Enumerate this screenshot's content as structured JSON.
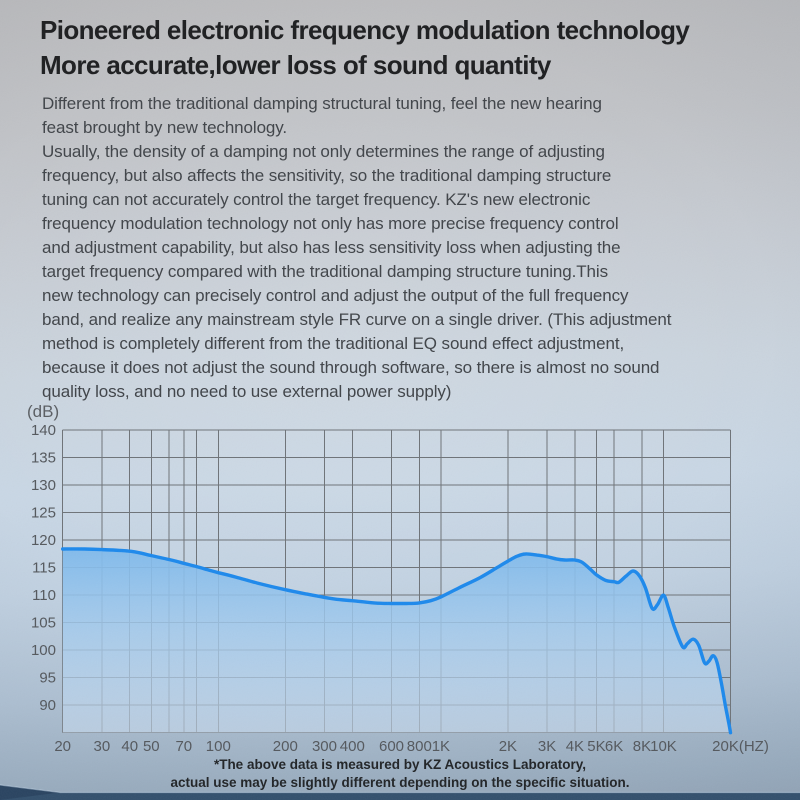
{
  "header": {
    "title_line1": "Pioneered electronic frequency modulation technology",
    "title_line2": "More accurate,lower loss of sound quantity"
  },
  "body_text": {
    "lines": [
      "Different from the traditional damping structural tuning, feel the new hearing",
      "feast brought by new technology.",
      "Usually, the density of a damping not only determines the range of adjusting",
      "frequency, but also affects the sensitivity, so the traditional damping structure",
      "tuning can not accurately control the target frequency. KZ's new electronic",
      "frequency modulation technology not only has more precise frequency control",
      "and adjustment capability, but also has less sensitivity loss when adjusting the",
      "target frequency compared with the traditional damping structure tuning.This",
      "new technology can precisely control and adjust the output of the full frequency",
      "band, and realize any mainstream style FR curve on a single driver. (This adjustment",
      "method is completely different from the traditional EQ sound effect adjustment,",
      "because it does not adjust the sound through software, so there is almost no sound",
      "quality loss, and no need to use external power supply)"
    ]
  },
  "chart_data": {
    "type": "area",
    "title": "",
    "xlabel": "(HZ)",
    "ylabel": "(dB)",
    "grid": "on",
    "legend": "off",
    "x_axis": {
      "scale": "log",
      "min_hz": 20,
      "max_hz": 20000,
      "gridlines_hz": [
        20,
        30,
        40,
        50,
        60,
        70,
        80,
        100,
        200,
        300,
        400,
        600,
        800,
        1000,
        2000,
        3000,
        4000,
        5000,
        6000,
        8000,
        10000,
        20000
      ],
      "labels": [
        {
          "hz": 20,
          "label": "20"
        },
        {
          "hz": 30,
          "label": "30"
        },
        {
          "hz": 40,
          "label": "40"
        },
        {
          "hz": 50,
          "label": "50"
        },
        {
          "hz": 70,
          "label": "70"
        },
        {
          "hz": 100,
          "label": "100"
        },
        {
          "hz": 200,
          "label": "200"
        },
        {
          "hz": 300,
          "label": "300"
        },
        {
          "hz": 400,
          "label": "400"
        },
        {
          "hz": 600,
          "label": "600"
        },
        {
          "hz": 800,
          "label": "800"
        },
        {
          "hz": 1000,
          "label": "1K"
        },
        {
          "hz": 2000,
          "label": "2K"
        },
        {
          "hz": 3000,
          "label": "3K"
        },
        {
          "hz": 4000,
          "label": "4K"
        },
        {
          "hz": 5000,
          "label": "5K"
        },
        {
          "hz": 6000,
          "label": "6K"
        },
        {
          "hz": 8000,
          "label": "8K"
        },
        {
          "hz": 10000,
          "label": "10K"
        },
        {
          "hz": 20000,
          "label": "20K(HZ)"
        }
      ]
    },
    "y_axis": {
      "unit_label": "(dB)",
      "min": 85,
      "max": 140,
      "tick_step": 5,
      "tick_labels": [
        "140",
        "135",
        "130",
        "125",
        "120",
        "115",
        "110",
        "105",
        "100",
        "95",
        "90"
      ]
    },
    "series": [
      {
        "name": "frequency-response",
        "color": "#1d89ec",
        "points_hz_db": [
          [
            20,
            118.4
          ],
          [
            25,
            118.4
          ],
          [
            30,
            118.3
          ],
          [
            36,
            118.15
          ],
          [
            42,
            117.9
          ],
          [
            50,
            117.2
          ],
          [
            60,
            116.5
          ],
          [
            70,
            115.8
          ],
          [
            80,
            115.2
          ],
          [
            90,
            114.6
          ],
          [
            100,
            114.1
          ],
          [
            120,
            113.3
          ],
          [
            150,
            112.2
          ],
          [
            200,
            111.0
          ],
          [
            250,
            110.2
          ],
          [
            300,
            109.6
          ],
          [
            350,
            109.2
          ],
          [
            400,
            109.0
          ],
          [
            500,
            108.6
          ],
          [
            600,
            108.5
          ],
          [
            700,
            108.5
          ],
          [
            800,
            108.6
          ],
          [
            900,
            109.0
          ],
          [
            1000,
            109.7
          ],
          [
            1200,
            111.3
          ],
          [
            1500,
            113.2
          ],
          [
            1800,
            115.1
          ],
          [
            2000,
            116.2
          ],
          [
            2200,
            117.1
          ],
          [
            2400,
            117.5
          ],
          [
            2700,
            117.3
          ],
          [
            3000,
            117.0
          ],
          [
            3300,
            116.6
          ],
          [
            3600,
            116.4
          ],
          [
            4000,
            116.4
          ],
          [
            4300,
            116.0
          ],
          [
            4700,
            114.7
          ],
          [
            5000,
            113.7
          ],
          [
            5500,
            112.7
          ],
          [
            6000,
            112.45
          ],
          [
            6300,
            112.35
          ],
          [
            6800,
            113.5
          ],
          [
            7300,
            114.4
          ],
          [
            7800,
            113.5
          ],
          [
            8300,
            111.3
          ],
          [
            8900,
            107.6
          ],
          [
            9400,
            108.3
          ],
          [
            10000,
            110.0
          ],
          [
            10500,
            107.8
          ],
          [
            11200,
            104.2
          ],
          [
            12200,
            100.6
          ],
          [
            12800,
            101.2
          ],
          [
            13600,
            102.0
          ],
          [
            14400,
            100.9
          ],
          [
            15300,
            97.7
          ],
          [
            16000,
            98.0
          ],
          [
            16700,
            99.0
          ],
          [
            17400,
            97.8
          ],
          [
            18200,
            94.0
          ],
          [
            19000,
            89.8
          ],
          [
            19600,
            87.0
          ],
          [
            20000,
            85.0
          ]
        ]
      }
    ]
  },
  "footnote": {
    "line1": "*The above data is measured by KZ Acoustics Laboratory,",
    "line2": "actual use may be slightly different depending on the specific situation."
  },
  "colors": {
    "accent_blue": "#1d89ec",
    "grid_line": "#6e7378",
    "axis_text": "#54585d",
    "title_text": "#1d1e20",
    "body_text": "#404449",
    "footnote_text": "#212427",
    "bottom_bar": "#33506d"
  }
}
